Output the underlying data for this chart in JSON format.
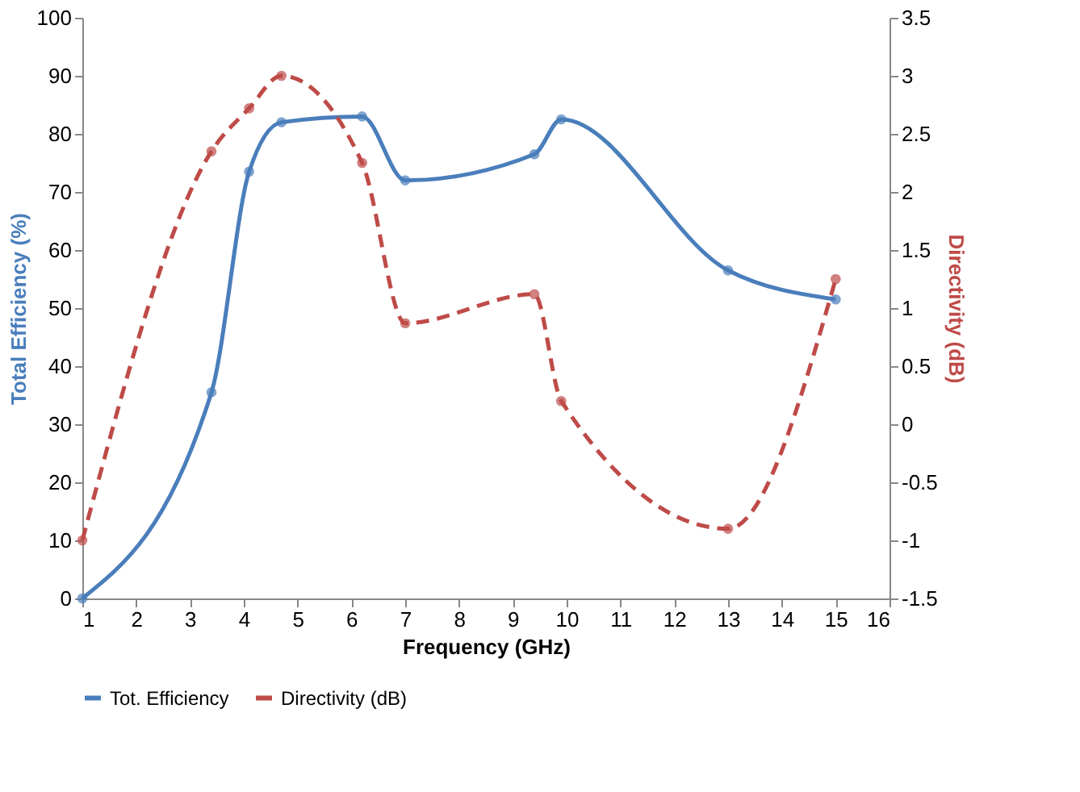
{
  "chart_data": {
    "type": "line",
    "xlabel": "Frequency (GHz)",
    "ylabel": "Total Efficiency (%)",
    "y2label": "Directivity (dB)",
    "x": [
      1,
      3.4,
      4.1,
      4.7,
      6.2,
      7,
      9.4,
      9.9,
      13,
      15
    ],
    "series": [
      {
        "name": "Tot. Efficiency",
        "color": "#4a7ebb",
        "values": [
          0,
          35.5,
          73.5,
          82,
          83,
          72,
          76.5,
          82.5,
          56.5,
          51.5
        ],
        "line_style": "solid",
        "marker": "circle"
      },
      {
        "name": "Directivity (dB)",
        "color": "#be4b48",
        "axis": "y2",
        "values": [
          -1.0,
          2.35,
          2.72,
          3.0,
          2.25,
          0.87,
          1.12,
          0.2,
          -0.9,
          1.25
        ],
        "line_style": "dashed",
        "marker": "circle"
      }
    ],
    "xlim": [
      1,
      16
    ],
    "xticks": [
      1,
      2,
      3,
      4,
      5,
      6,
      7,
      8,
      9,
      10,
      11,
      12,
      13,
      14,
      15,
      16
    ],
    "ylim": [
      0,
      100
    ],
    "yticks": [
      0,
      10,
      20,
      30,
      40,
      50,
      60,
      70,
      80,
      90,
      100
    ],
    "y2lim": [
      -1.5,
      3.5
    ],
    "y2ticks": [
      -1.5,
      -1,
      -0.5,
      0,
      0.5,
      1,
      1.5,
      2,
      2.5,
      3,
      3.5
    ],
    "grid": false,
    "legend": "bottom"
  }
}
